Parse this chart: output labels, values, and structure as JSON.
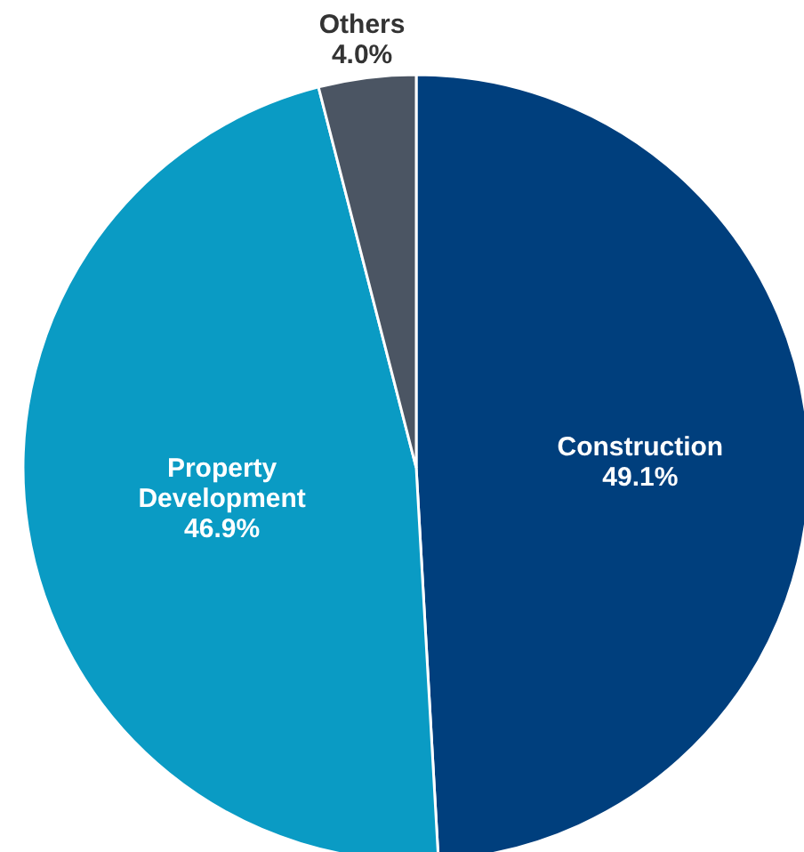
{
  "chart_data": {
    "type": "pie",
    "categories": [
      "Construction",
      "Property Development",
      "Others"
    ],
    "values": [
      49.1,
      46.9,
      4.0
    ],
    "value_labels": [
      "49.1%",
      "46.9%",
      "4.0%"
    ],
    "colors": [
      "#003f7d",
      "#0a9bc4",
      "#4b5563"
    ]
  }
}
